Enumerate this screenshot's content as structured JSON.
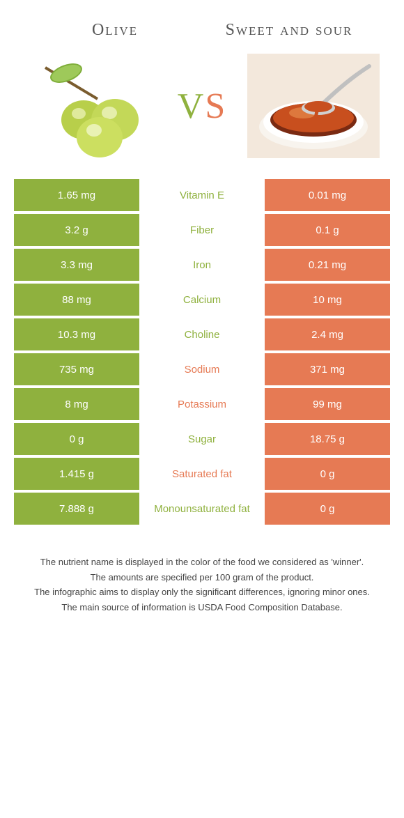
{
  "colors": {
    "green": "#8fb13e",
    "orange": "#e67a54",
    "text": "#555555",
    "white": "#ffffff"
  },
  "header": {
    "left": "Olive",
    "right": "Sweet and sour",
    "vs_v": "V",
    "vs_s": "S"
  },
  "rows": [
    {
      "left": "1.65 mg",
      "mid": "Vitamin E",
      "right": "0.01 mg",
      "winner": "green"
    },
    {
      "left": "3.2 g",
      "mid": "Fiber",
      "right": "0.1 g",
      "winner": "green"
    },
    {
      "left": "3.3 mg",
      "mid": "Iron",
      "right": "0.21 mg",
      "winner": "green"
    },
    {
      "left": "88 mg",
      "mid": "Calcium",
      "right": "10 mg",
      "winner": "green"
    },
    {
      "left": "10.3 mg",
      "mid": "Choline",
      "right": "2.4 mg",
      "winner": "green"
    },
    {
      "left": "735 mg",
      "mid": "Sodium",
      "right": "371 mg",
      "winner": "orange"
    },
    {
      "left": "8 mg",
      "mid": "Potassium",
      "right": "99 mg",
      "winner": "orange"
    },
    {
      "left": "0 g",
      "mid": "Sugar",
      "right": "18.75 g",
      "winner": "green"
    },
    {
      "left": "1.415 g",
      "mid": "Saturated fat",
      "right": "0 g",
      "winner": "orange"
    },
    {
      "left": "7.888 g",
      "mid": "Monounsaturated fat",
      "right": "0 g",
      "winner": "green"
    }
  ],
  "footer": {
    "l1": "The nutrient name is displayed in the color of the food we considered as 'winner'.",
    "l2": "The amounts are specified per 100 gram of the product.",
    "l3": "The infographic aims to display only the significant differences, ignoring minor ones.",
    "l4": "The main source of information is USDA Food Composition Database."
  }
}
